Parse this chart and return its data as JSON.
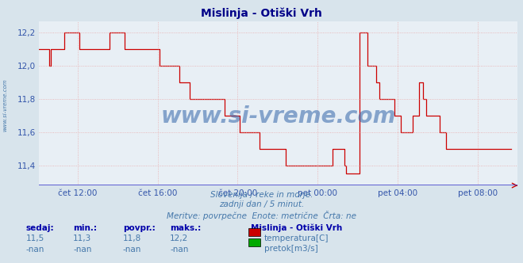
{
  "title": "Mislinja - Otiški Vrh",
  "bg_color": "#d8e4ec",
  "plot_bg_color": "#e8eff5",
  "grid_color": "#e8aaaa",
  "line_color": "#cc0000",
  "axis_color": "#3355aa",
  "title_color": "#000088",
  "text_color": "#4477aa",
  "label_color": "#0000aa",
  "ylim": [
    11.28,
    12.27
  ],
  "yticks": [
    11.4,
    11.6,
    11.8,
    12.0,
    12.2
  ],
  "xlim": [
    0,
    287
  ],
  "xtick_positions": [
    23,
    71,
    119,
    167,
    215,
    263
  ],
  "xtick_labels": [
    "čet 12:00",
    "čet 16:00",
    "čet 20:00",
    "pet 00:00",
    "pet 04:00",
    "pet 08:00"
  ],
  "watermark": "www.si-vreme.com",
  "watermark_color": "#3366aa",
  "left_label": "www.si-vreme.com",
  "footer_line1": "Slovenija / reke in morje.",
  "footer_line2": "zadnji dan / 5 minut.",
  "footer_line3": "Meritve: povrpečne  Enote: metrične  Črta: ne",
  "stats_headers": [
    "sedaj:",
    "min.:",
    "povpr.:",
    "maks.:"
  ],
  "stats_values1": [
    "11,5",
    "11,3",
    "11,8",
    "12,2"
  ],
  "stats_values2": [
    "-nan",
    "-nan",
    "-nan",
    "-nan"
  ],
  "legend_title": "Mislinja - Otiški Vrh",
  "legend_items": [
    {
      "color": "#cc0000",
      "label": "temperatura[C]"
    },
    {
      "color": "#00aa00",
      "label": "pretok[m3/s]"
    }
  ],
  "temperature_data": [
    12.1,
    12.1,
    12.1,
    12.1,
    12.1,
    12.1,
    12.0,
    12.1,
    12.1,
    12.1,
    12.1,
    12.1,
    12.1,
    12.1,
    12.1,
    12.2,
    12.2,
    12.2,
    12.2,
    12.2,
    12.2,
    12.2,
    12.2,
    12.2,
    12.1,
    12.1,
    12.1,
    12.1,
    12.1,
    12.1,
    12.1,
    12.1,
    12.1,
    12.1,
    12.1,
    12.1,
    12.1,
    12.1,
    12.1,
    12.1,
    12.1,
    12.1,
    12.2,
    12.2,
    12.2,
    12.2,
    12.2,
    12.2,
    12.2,
    12.2,
    12.2,
    12.1,
    12.1,
    12.1,
    12.1,
    12.1,
    12.1,
    12.1,
    12.1,
    12.1,
    12.1,
    12.1,
    12.1,
    12.1,
    12.1,
    12.1,
    12.1,
    12.1,
    12.1,
    12.1,
    12.1,
    12.1,
    12.0,
    12.0,
    12.0,
    12.0,
    12.0,
    12.0,
    12.0,
    12.0,
    12.0,
    12.0,
    12.0,
    12.0,
    11.9,
    11.9,
    11.9,
    11.9,
    11.9,
    11.9,
    11.8,
    11.8,
    11.8,
    11.8,
    11.8,
    11.8,
    11.8,
    11.8,
    11.8,
    11.8,
    11.8,
    11.8,
    11.8,
    11.8,
    11.8,
    11.8,
    11.8,
    11.8,
    11.8,
    11.8,
    11.8,
    11.7,
    11.7,
    11.7,
    11.7,
    11.7,
    11.7,
    11.7,
    11.7,
    11.7,
    11.6,
    11.6,
    11.6,
    11.6,
    11.6,
    11.6,
    11.6,
    11.6,
    11.6,
    11.6,
    11.6,
    11.6,
    11.5,
    11.5,
    11.5,
    11.5,
    11.5,
    11.5,
    11.5,
    11.5,
    11.5,
    11.5,
    11.5,
    11.5,
    11.5,
    11.5,
    11.5,
    11.5,
    11.4,
    11.4,
    11.4,
    11.4,
    11.4,
    11.4,
    11.4,
    11.4,
    11.4,
    11.4,
    11.4,
    11.4,
    11.4,
    11.4,
    11.4,
    11.4,
    11.4,
    11.4,
    11.4,
    11.4,
    11.4,
    11.4,
    11.4,
    11.4,
    11.4,
    11.4,
    11.4,
    11.4,
    11.5,
    11.5,
    11.5,
    11.5,
    11.5,
    11.5,
    11.5,
    11.4,
    11.35,
    11.35,
    11.35,
    11.35,
    11.35,
    11.35,
    11.35,
    11.35,
    12.2,
    12.2,
    12.2,
    12.2,
    12.2,
    12.0,
    12.0,
    12.0,
    12.0,
    12.0,
    11.9,
    11.9,
    11.8,
    11.8,
    11.8,
    11.8,
    11.8,
    11.8,
    11.8,
    11.8,
    11.8,
    11.7,
    11.7,
    11.7,
    11.7,
    11.6,
    11.6,
    11.6,
    11.6,
    11.6,
    11.6,
    11.6,
    11.7,
    11.7,
    11.7,
    11.7,
    11.9,
    11.9,
    11.8,
    11.8,
    11.7,
    11.7,
    11.7,
    11.7,
    11.7,
    11.7,
    11.7,
    11.7,
    11.6,
    11.6,
    11.6,
    11.6,
    11.5,
    11.5,
    11.5,
    11.5,
    11.5,
    11.5,
    11.5,
    11.5,
    11.5,
    11.5,
    11.5,
    11.5,
    11.5,
    11.5,
    11.5,
    11.5,
    11.5,
    11.5,
    11.5,
    11.5,
    11.5,
    11.5,
    11.5,
    11.5,
    11.5,
    11.5,
    11.5,
    11.5,
    11.5,
    11.5,
    11.5,
    11.5,
    11.5,
    11.5,
    11.5,
    11.5,
    11.5,
    11.5,
    11.5,
    11.5
  ]
}
